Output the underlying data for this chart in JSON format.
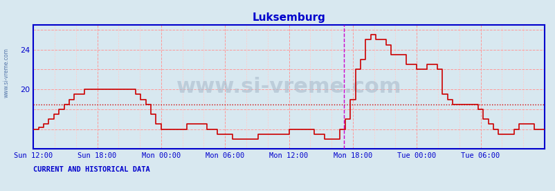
{
  "title": "Luksemburg",
  "bg_color": "#d8e8f0",
  "plot_bg_color": "#d8e8f0",
  "line_color": "#cc0000",
  "axis_color": "#0000cc",
  "grid_color_major": "#ff9999",
  "grid_color_minor": "#ffcccc",
  "hline_color": "#cc0000",
  "hline_y": 18.5,
  "vline_color": "#cc00cc",
  "vline_x": 0.608,
  "ylim": [
    14.0,
    26.5
  ],
  "yticks": [
    16,
    20,
    24
  ],
  "ytick_labels": [
    "",
    "20",
    "24"
  ],
  "xtick_positions": [
    0.0,
    0.125,
    0.25,
    0.375,
    0.5,
    0.625,
    0.75,
    0.875
  ],
  "xtick_labels": [
    "Sun 12:00",
    "Sun 18:00",
    "Mon 00:00",
    "Mon 06:00",
    "Mon 12:00",
    "Mon 18:00",
    "Tue 00:00",
    "Tue 06:00"
  ],
  "watermark": "www.si-vreme.com",
  "side_text": "www.si-vreme.com",
  "bottom_text": "CURRENT AND HISTORICAL DATA",
  "legend_color": "#cc0000",
  "data_x": [
    0.0,
    0.01,
    0.02,
    0.03,
    0.04,
    0.05,
    0.06,
    0.07,
    0.08,
    0.09,
    0.1,
    0.11,
    0.12,
    0.13,
    0.14,
    0.15,
    0.16,
    0.17,
    0.18,
    0.19,
    0.2,
    0.21,
    0.22,
    0.23,
    0.24,
    0.25,
    0.26,
    0.27,
    0.28,
    0.29,
    0.3,
    0.31,
    0.32,
    0.33,
    0.34,
    0.35,
    0.36,
    0.37,
    0.38,
    0.39,
    0.4,
    0.41,
    0.42,
    0.43,
    0.44,
    0.45,
    0.46,
    0.47,
    0.48,
    0.49,
    0.5,
    0.51,
    0.52,
    0.53,
    0.54,
    0.55,
    0.56,
    0.57,
    0.58,
    0.59,
    0.6,
    0.61,
    0.62,
    0.63,
    0.64,
    0.65,
    0.66,
    0.67,
    0.68,
    0.69,
    0.7,
    0.71,
    0.72,
    0.73,
    0.74,
    0.75,
    0.76,
    0.77,
    0.78,
    0.79,
    0.8,
    0.81,
    0.82,
    0.83,
    0.84,
    0.85,
    0.86,
    0.87,
    0.88,
    0.89,
    0.9,
    0.91,
    0.92,
    0.93,
    0.94,
    0.95,
    0.96,
    0.97,
    0.98,
    0.99,
    1.0
  ],
  "data_y": [
    16.0,
    16.2,
    16.5,
    17.0,
    17.5,
    18.0,
    18.5,
    19.0,
    19.5,
    19.5,
    20.0,
    20.0,
    20.0,
    20.0,
    20.0,
    20.0,
    20.0,
    20.0,
    20.0,
    20.0,
    19.5,
    19.0,
    18.5,
    17.5,
    16.5,
    16.0,
    16.0,
    16.0,
    16.0,
    16.0,
    16.5,
    16.5,
    16.5,
    16.5,
    16.0,
    16.0,
    15.5,
    15.5,
    15.5,
    15.0,
    15.0,
    15.0,
    15.0,
    15.0,
    15.5,
    15.5,
    15.5,
    15.5,
    15.5,
    15.5,
    16.0,
    16.0,
    16.0,
    16.0,
    16.0,
    15.5,
    15.5,
    15.0,
    15.0,
    15.0,
    16.0,
    17.0,
    19.0,
    22.0,
    23.0,
    25.0,
    25.5,
    25.0,
    25.0,
    24.5,
    23.5,
    23.5,
    23.5,
    22.5,
    22.5,
    22.0,
    22.0,
    22.5,
    22.5,
    22.0,
    19.5,
    19.0,
    18.5,
    18.5,
    18.5,
    18.5,
    18.5,
    18.0,
    17.0,
    16.5,
    16.0,
    15.5,
    15.5,
    15.5,
    16.0,
    16.5,
    16.5,
    16.5,
    16.0,
    16.0,
    16.0
  ]
}
